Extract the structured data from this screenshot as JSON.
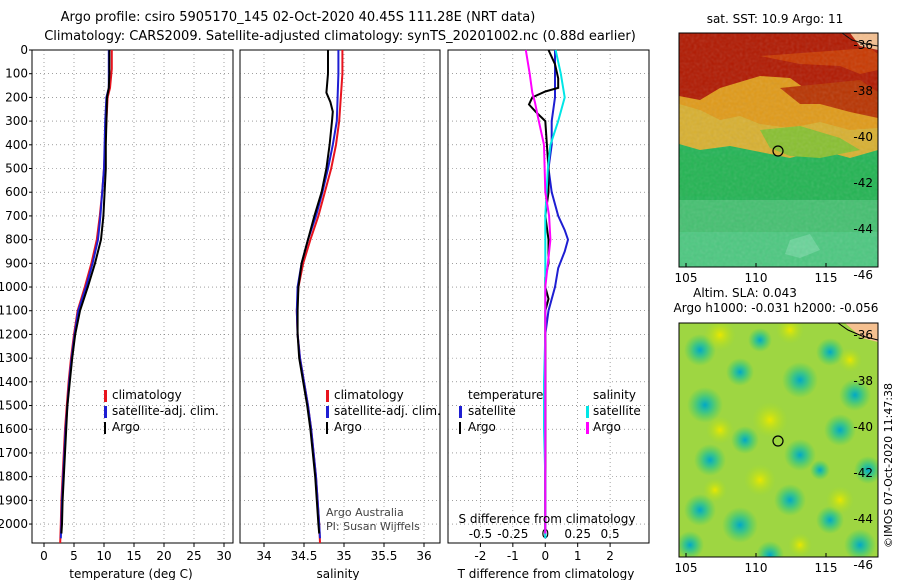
{
  "header": {
    "line1": "Argo profile: csiro 5905170_145 02-Oct-2020 40.45S 111.28E (NRT data)",
    "line2": "Climatology: CARS2009. Satellite-adjusted climatology: synTS_20201002.nc (0.88d earlier)"
  },
  "colors": {
    "climatology": "#e8141e",
    "satellite": "#1e1ed2",
    "argo": "#000000",
    "sat_salinity": "#00e6e6",
    "argo_salinity": "#ff00ff"
  },
  "chart_data": [
    {
      "type": "line",
      "name": "temperature",
      "xlabel": "temperature (deg C)",
      "ylabel": "",
      "xlim": [
        -2,
        31.5
      ],
      "ylim": [
        2080,
        0
      ],
      "xticks": [
        0,
        5,
        10,
        15,
        20,
        25,
        30
      ],
      "xtick_labels": [
        "0",
        "5",
        "10",
        "15",
        "20",
        "25",
        "30"
      ],
      "yticks": [
        0,
        100,
        200,
        300,
        400,
        500,
        600,
        700,
        800,
        900,
        1000,
        1100,
        1200,
        1300,
        1400,
        1500,
        1600,
        1700,
        1800,
        1900,
        2000
      ],
      "legend": [
        "climatology",
        "satellite-adj. clim.",
        "Argo"
      ],
      "series": [
        {
          "name": "climatology",
          "color_key": "climatology",
          "points": [
            [
              11.3,
              0
            ],
            [
              11.3,
              80
            ],
            [
              11.0,
              160
            ],
            [
              10.6,
              200
            ],
            [
              10.4,
              300
            ],
            [
              10.2,
              400
            ],
            [
              10.0,
              500
            ],
            [
              9.7,
              600
            ],
            [
              9.3,
              700
            ],
            [
              8.8,
              800
            ],
            [
              7.9,
              900
            ],
            [
              6.8,
              1000
            ],
            [
              5.6,
              1100
            ],
            [
              5.0,
              1200
            ],
            [
              4.5,
              1300
            ],
            [
              4.1,
              1400
            ],
            [
              3.8,
              1500
            ],
            [
              3.5,
              1600
            ],
            [
              3.3,
              1700
            ],
            [
              3.1,
              1800
            ],
            [
              2.9,
              1900
            ],
            [
              2.8,
              2000
            ],
            [
              2.7,
              2080
            ]
          ]
        },
        {
          "name": "satellite-adj. clim.",
          "color_key": "satellite",
          "points": [
            [
              10.8,
              0
            ],
            [
              10.8,
              80
            ],
            [
              10.8,
              160
            ],
            [
              10.4,
              200
            ],
            [
              10.2,
              300
            ],
            [
              10.1,
              400
            ],
            [
              10.0,
              500
            ],
            [
              9.7,
              600
            ],
            [
              9.4,
              700
            ],
            [
              9.0,
              800
            ],
            [
              8.1,
              900
            ],
            [
              7.0,
              1000
            ],
            [
              5.7,
              1100
            ],
            [
              5.1,
              1200
            ],
            [
              4.6,
              1300
            ],
            [
              4.2,
              1400
            ],
            [
              3.9,
              1500
            ],
            [
              3.6,
              1600
            ],
            [
              3.4,
              1700
            ],
            [
              3.2,
              1800
            ],
            [
              3.0,
              1900
            ],
            [
              2.9,
              2000
            ],
            [
              2.8,
              2060
            ]
          ]
        },
        {
          "name": "Argo",
          "color_key": "argo",
          "points": [
            [
              10.9,
              0
            ],
            [
              10.9,
              100
            ],
            [
              10.8,
              160
            ],
            [
              10.5,
              200
            ],
            [
              10.4,
              300
            ],
            [
              10.3,
              400
            ],
            [
              10.3,
              500
            ],
            [
              10.1,
              600
            ],
            [
              9.9,
              700
            ],
            [
              9.5,
              800
            ],
            [
              8.5,
              900
            ],
            [
              7.3,
              1000
            ],
            [
              6.0,
              1100
            ],
            [
              5.2,
              1200
            ],
            [
              4.7,
              1300
            ],
            [
              4.3,
              1400
            ],
            [
              3.9,
              1500
            ],
            [
              3.7,
              1600
            ],
            [
              3.5,
              1700
            ],
            [
              3.3,
              1800
            ],
            [
              3.1,
              1900
            ],
            [
              3.0,
              2000
            ],
            [
              2.9,
              2040
            ]
          ]
        }
      ]
    },
    {
      "type": "line",
      "name": "salinity",
      "xlabel": "salinity",
      "ylabel": "",
      "xlim": [
        33.7,
        36.2
      ],
      "ylim": [
        2080,
        0
      ],
      "xticks": [
        34,
        34.5,
        35,
        35.5,
        36
      ],
      "xtick_labels": [
        "34",
        "34.5",
        "35",
        "35.5",
        "36"
      ],
      "legend": [
        "climatology",
        "satellite-adj. clim.",
        "Argo"
      ],
      "credit": [
        "Argo Australia",
        "PI: Susan Wijffels"
      ],
      "series": [
        {
          "name": "climatology",
          "color_key": "climatology",
          "points": [
            [
              34.98,
              0
            ],
            [
              34.98,
              100
            ],
            [
              34.96,
              200
            ],
            [
              34.94,
              300
            ],
            [
              34.9,
              400
            ],
            [
              34.84,
              500
            ],
            [
              34.76,
              600
            ],
            [
              34.68,
              700
            ],
            [
              34.58,
              800
            ],
            [
              34.49,
              900
            ],
            [
              34.43,
              1000
            ],
            [
              34.41,
              1100
            ],
            [
              34.42,
              1200
            ],
            [
              34.45,
              1300
            ],
            [
              34.5,
              1400
            ],
            [
              34.55,
              1500
            ],
            [
              34.59,
              1600
            ],
            [
              34.62,
              1700
            ],
            [
              34.65,
              1800
            ],
            [
              34.67,
              1900
            ],
            [
              34.69,
              2000
            ],
            [
              34.7,
              2080
            ]
          ]
        },
        {
          "name": "satellite-adj. clim.",
          "color_key": "satellite",
          "points": [
            [
              34.93,
              0
            ],
            [
              34.93,
              100
            ],
            [
              34.92,
              200
            ],
            [
              34.91,
              300
            ],
            [
              34.86,
              400
            ],
            [
              34.8,
              500
            ],
            [
              34.73,
              600
            ],
            [
              34.65,
              700
            ],
            [
              34.55,
              800
            ],
            [
              34.47,
              900
            ],
            [
              34.42,
              1000
            ],
            [
              34.41,
              1100
            ],
            [
              34.42,
              1200
            ],
            [
              34.45,
              1300
            ],
            [
              34.5,
              1400
            ],
            [
              34.55,
              1500
            ],
            [
              34.59,
              1600
            ],
            [
              34.62,
              1700
            ],
            [
              34.65,
              1800
            ],
            [
              34.67,
              1900
            ],
            [
              34.69,
              2000
            ],
            [
              34.7,
              2060
            ]
          ]
        },
        {
          "name": "Argo",
          "color_key": "argo",
          "points": [
            [
              34.8,
              0
            ],
            [
              34.8,
              100
            ],
            [
              34.78,
              180
            ],
            [
              34.83,
              220
            ],
            [
              34.86,
              260
            ],
            [
              34.85,
              300
            ],
            [
              34.82,
              400
            ],
            [
              34.78,
              500
            ],
            [
              34.72,
              600
            ],
            [
              34.63,
              700
            ],
            [
              34.55,
              800
            ],
            [
              34.47,
              900
            ],
            [
              34.43,
              1000
            ],
            [
              34.42,
              1100
            ],
            [
              34.42,
              1200
            ],
            [
              34.44,
              1300
            ],
            [
              34.49,
              1400
            ],
            [
              34.54,
              1500
            ],
            [
              34.58,
              1600
            ],
            [
              34.61,
              1700
            ],
            [
              34.64,
              1800
            ],
            [
              34.66,
              1900
            ],
            [
              34.68,
              2000
            ],
            [
              34.69,
              2040
            ]
          ]
        }
      ]
    },
    {
      "type": "line",
      "name": "differences",
      "xlabel": "T difference from climatology",
      "xlabel2": "S difference from climatology",
      "xlim": [
        -3,
        3.2
      ],
      "ylim": [
        2080,
        0
      ],
      "xticks": [
        -2,
        -1,
        0,
        1,
        2
      ],
      "xtick_labels": [
        "-2",
        "-1",
        "0",
        "1",
        "2"
      ],
      "xticks2": [
        -0.5,
        -0.25,
        0,
        0.25,
        0.5
      ],
      "xtick2_labels": [
        "-0.5",
        "-0.25",
        "0",
        "0.25",
        "0.5"
      ],
      "legend_left_title": "temperature",
      "legend_right_title": "salinity",
      "legend_left": [
        "satellite",
        "Argo"
      ],
      "legend_right": [
        "satellite",
        "Argo"
      ],
      "series": [
        {
          "name": "T satellite",
          "color_key": "satellite",
          "points": [
            [
              0.3,
              0
            ],
            [
              0.3,
              100
            ],
            [
              0.3,
              200
            ],
            [
              0.2,
              300
            ],
            [
              0.2,
              400
            ],
            [
              0.1,
              500
            ],
            [
              0.2,
              600
            ],
            [
              0.4,
              700
            ],
            [
              0.6,
              760
            ],
            [
              0.7,
              800
            ],
            [
              0.6,
              850
            ],
            [
              0.4,
              920
            ],
            [
              0.3,
              1000
            ],
            [
              0.1,
              1100
            ],
            [
              0.0,
              1200
            ],
            [
              0.0,
              1400
            ],
            [
              0.0,
              1700
            ],
            [
              0.0,
              2060
            ]
          ]
        },
        {
          "name": "T Argo",
          "color_key": "argo",
          "points": [
            [
              0.1,
              0
            ],
            [
              0.3,
              60
            ],
            [
              0.4,
              120
            ],
            [
              0.4,
              160
            ],
            [
              0.0,
              175
            ],
            [
              -0.4,
              200
            ],
            [
              -0.5,
              230
            ],
            [
              -0.3,
              260
            ],
            [
              0.0,
              300
            ],
            [
              0.1,
              500
            ],
            [
              0.1,
              600
            ],
            [
              0.0,
              700
            ],
            [
              0.1,
              800
            ],
            [
              0.1,
              900
            ],
            [
              0.0,
              960
            ],
            [
              0.0,
              1000
            ],
            [
              0.1,
              1050
            ],
            [
              0.0,
              1100
            ],
            [
              0.0,
              1400
            ],
            [
              0.0,
              2040
            ]
          ]
        },
        {
          "name": "S satellite",
          "color_key": "sat_salinity",
          "points": [
            [
              0.08,
              0
            ],
            [
              0.12,
              100
            ],
            [
              0.15,
              200
            ],
            [
              0.1,
              300
            ],
            [
              0.04,
              400
            ],
            [
              0.02,
              500
            ],
            [
              0.0,
              700
            ],
            [
              0.0,
              1000
            ],
            [
              0.0,
              1200
            ],
            [
              -0.01,
              1400
            ],
            [
              -0.01,
              1600
            ],
            [
              0.0,
              1800
            ],
            [
              0.0,
              2060
            ]
          ]
        },
        {
          "name": "S Argo",
          "color_key": "argo_salinity",
          "points": [
            [
              -0.15,
              0
            ],
            [
              -0.12,
              100
            ],
            [
              -0.1,
              180
            ],
            [
              -0.08,
              220
            ],
            [
              -0.05,
              300
            ],
            [
              -0.01,
              400
            ],
            [
              0.0,
              600
            ],
            [
              0.03,
              700
            ],
            [
              0.04,
              800
            ],
            [
              0.02,
              900
            ],
            [
              0.0,
              1000
            ],
            [
              0.0,
              1400
            ],
            [
              0.0,
              2040
            ]
          ]
        }
      ]
    }
  ],
  "y_tick_labels": [
    "0",
    "100",
    "200",
    "300",
    "400",
    "500",
    "600",
    "700",
    "800",
    "900",
    "1000",
    "1100",
    "1200",
    "1300",
    "1400",
    "1500",
    "1600",
    "1700",
    "1800",
    "1900",
    "2000"
  ],
  "map_sst": {
    "title": "sat. SST: 10.9 Argo: 11",
    "x_ticks": [
      "105",
      "110",
      "115"
    ],
    "y_ticks": [
      "-36",
      "-38",
      "-40",
      "-42",
      "-44",
      "-46"
    ]
  },
  "map_sla": {
    "title_line1": "Altim. SLA: 0.043",
    "title_line2": "Argo h1000: -0.031 h2000: -0.056",
    "x_ticks": [
      "105",
      "110",
      "115"
    ],
    "y_ticks": [
      "-36",
      "-38",
      "-40",
      "-42",
      "-44",
      "-46"
    ]
  },
  "watermark": "©IMOS 07-Oct-2020 11:47:38"
}
